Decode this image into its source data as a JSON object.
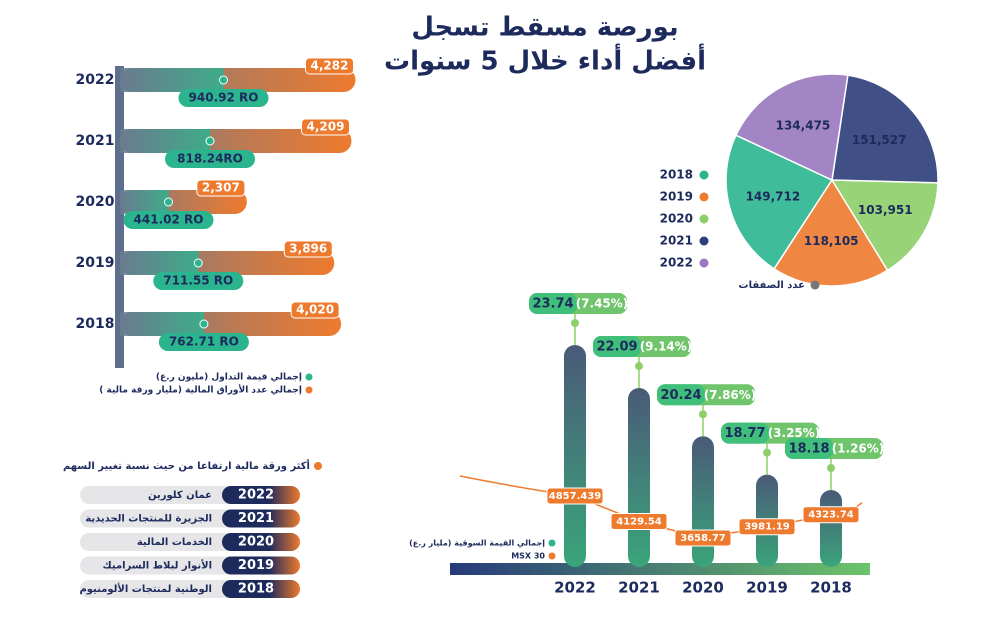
{
  "title_lines": [
    "بورصة مسقط تسجل",
    "أفضل أداء خلال 5 سنوات"
  ],
  "chart_data": [
    {
      "type": "hbar",
      "categories": [
        "2022",
        "2021",
        "2020",
        "2019",
        "2018"
      ],
      "series": [
        {
          "name": "إجمالي قيمة التداول (مليون ر.ع)",
          "color": "#2bb58f",
          "values": [
            940.92,
            818.24,
            441.02,
            711.55,
            762.71
          ],
          "value_labels": [
            "940.92 RO",
            "818.24RO",
            "441.02 RO",
            "711.55 RO",
            "762.71 RO"
          ]
        },
        {
          "name": "إجمالي عدد الأوراق المالية (مليار ورقة مالية )",
          "color": "#ee7a2e",
          "values": [
            4282,
            4209,
            2307,
            3896,
            4020
          ],
          "value_labels": [
            "4,282",
            "4,209",
            "2,307",
            "3,896",
            "4,020"
          ]
        }
      ]
    },
    {
      "type": "pie",
      "title": "عدد الصفقات",
      "categories": [
        "2018",
        "2019",
        "2020",
        "2021",
        "2022"
      ],
      "values": [
        149712,
        118105,
        103951,
        151527,
        134475
      ],
      "value_labels": [
        "149,712",
        "118,105",
        "103,951",
        "151,527",
        "134,475"
      ],
      "colors": [
        "#2bb58f",
        "#ee7a2e",
        "#8dcf6a",
        "#2c3e7a",
        "#9a78c0"
      ]
    },
    {
      "type": "column-line",
      "categories": [
        "2022",
        "2021",
        "2020",
        "2019",
        "2018"
      ],
      "series": [
        {
          "name": "إجمالي القيمة السوقية (مليار ر.ع)",
          "color": "#2bb58f",
          "values": [
            23.74,
            22.09,
            20.24,
            18.77,
            18.18
          ],
          "change_labels": [
            "(7.45%)",
            "(9.14%)",
            "(7.86%)",
            "(3.25%)",
            "(1.26%)"
          ]
        },
        {
          "name": "MSX 30",
          "color": "#ee7a2e",
          "values": [
            4857.439,
            4129.54,
            3658.77,
            3981.19,
            4323.74
          ]
        }
      ]
    }
  ],
  "top_gainers": {
    "title": "أكثر ورقة مالية ارتفاعا من حيث نسبة تغيير السهم",
    "rows": [
      {
        "year": "2022",
        "name": "عمان كلورين"
      },
      {
        "year": "2021",
        "name": "الجزيرة للمنتجات الحديدية"
      },
      {
        "year": "2020",
        "name": "الخدمات المالية"
      },
      {
        "year": "2019",
        "name": "الأنوار لبلاط السراميك"
      },
      {
        "year": "2018",
        "name": "الوطنية لمنتجات الألومنيوم"
      }
    ]
  }
}
